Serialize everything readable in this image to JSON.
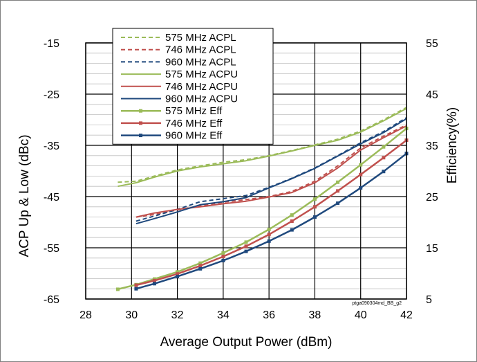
{
  "chart_data": {
    "type": "line",
    "xlabel": "Average Output Power (dBm)",
    "ylabel": "ACP Up & Low (dBc)",
    "y2label": "Efficiency(%)",
    "watermark": "ptga090304md_BB_g2",
    "xlim": [
      28,
      42
    ],
    "ylim": [
      -65,
      -15
    ],
    "y2lim": [
      5,
      55
    ],
    "xticks": [
      "28",
      "30",
      "32",
      "34",
      "36",
      "38",
      "40",
      "42"
    ],
    "yticks": [
      "-65",
      "-55",
      "-45",
      "-35",
      "-25",
      "-15"
    ],
    "y2ticks": [
      "5",
      "15",
      "25",
      "35",
      "45",
      "55"
    ],
    "grid": true,
    "legend": "top-left",
    "series": [
      {
        "name": "575 MHz ACPL",
        "color": "#9bbb59",
        "style": "dashed",
        "axis": "left",
        "x": [
          29.4,
          30.2,
          31,
          32,
          33,
          34,
          35,
          36,
          37,
          38,
          39,
          40,
          41,
          42
        ],
        "y": [
          -42.2,
          -42,
          -41,
          -39.8,
          -39,
          -38.3,
          -37.8,
          -37,
          -36,
          -34.9,
          -33.8,
          -32.2,
          -30,
          -27.6
        ]
      },
      {
        "name": "746 MHz ACPL",
        "color": "#c0504d",
        "style": "dashed",
        "axis": "left",
        "x": [
          30.2,
          31,
          32,
          33,
          34,
          35,
          36,
          37,
          38,
          39,
          40,
          41,
          42
        ],
        "y": [
          -49,
          -48.5,
          -47.6,
          -46.8,
          -46.1,
          -45.6,
          -45,
          -44,
          -42,
          -39,
          -35.5,
          -33.2,
          -31
        ]
      },
      {
        "name": "960 MHz ACPL",
        "color": "#1f497d",
        "style": "dashed",
        "axis": "left",
        "x": [
          30.2,
          31,
          32,
          33,
          34,
          35,
          36,
          37,
          38,
          39,
          40,
          41,
          42
        ],
        "y": [
          -49.8,
          -48.8,
          -47.5,
          -46,
          -45.4,
          -44.8,
          -43.2,
          -41.4,
          -39.4,
          -37,
          -34.5,
          -32.3,
          -29.6
        ]
      },
      {
        "name": "575 MHz ACPU",
        "color": "#9bbb59",
        "style": "solid",
        "axis": "left",
        "x": [
          29.4,
          30.2,
          31,
          32,
          33,
          34,
          35,
          36,
          37,
          38,
          39,
          40,
          41,
          42
        ],
        "y": [
          -43,
          -42.3,
          -41.2,
          -40,
          -39.2,
          -38.6,
          -38,
          -37.1,
          -36.1,
          -35,
          -34,
          -32.4,
          -30.2,
          -27.8
        ]
      },
      {
        "name": "746 MHz ACPU",
        "color": "#c0504d",
        "style": "solid",
        "axis": "left",
        "x": [
          30.2,
          31,
          32,
          33,
          34,
          35,
          36,
          37,
          38,
          39,
          40,
          41,
          42
        ],
        "y": [
          -49,
          -48.2,
          -47.5,
          -47,
          -46.4,
          -45.9,
          -45.1,
          -44.2,
          -42.3,
          -39.4,
          -35.9,
          -33.5,
          -31.2
        ]
      },
      {
        "name": "960 MHz ACPU",
        "color": "#1f497d",
        "style": "solid",
        "axis": "left",
        "x": [
          30.2,
          31,
          32,
          33,
          34,
          35,
          36,
          37,
          38,
          39,
          40,
          41,
          42
        ],
        "y": [
          -50.3,
          -49.3,
          -48,
          -46.6,
          -46,
          -45.2,
          -43.3,
          -41.5,
          -39.5,
          -37.1,
          -34.7,
          -32.5,
          -29.8
        ]
      },
      {
        "name": "575 MHz Eff",
        "color": "#9bbb59",
        "style": "marker",
        "axis": "right",
        "x": [
          29.4,
          30.2,
          31,
          32,
          33,
          34,
          35,
          36,
          37,
          38,
          39,
          40,
          41,
          42
        ],
        "y": [
          6.9,
          7.8,
          8.9,
          10.3,
          12,
          14,
          16.1,
          18.6,
          21.4,
          24.5,
          27.8,
          31.2,
          34.7,
          38.3
        ]
      },
      {
        "name": "746 MHz Eff",
        "color": "#c0504d",
        "style": "marker",
        "axis": "right",
        "x": [
          30.2,
          31,
          32,
          33,
          34,
          35,
          36,
          37,
          38,
          39,
          40,
          41,
          42
        ],
        "y": [
          7.7,
          8.6,
          9.9,
          11.5,
          13.3,
          15.3,
          17.6,
          20.2,
          23,
          26.1,
          29.3,
          32.6,
          36
        ]
      },
      {
        "name": "960 MHz Eff",
        "color": "#1f497d",
        "style": "marker",
        "axis": "right",
        "x": [
          30.2,
          31,
          32,
          33,
          34,
          35,
          36,
          37,
          38,
          39,
          40,
          41,
          42
        ],
        "y": [
          7,
          8,
          9.4,
          10.9,
          12.5,
          14.3,
          16.3,
          18.5,
          21,
          23.7,
          26.7,
          29.9,
          33.4
        ]
      }
    ]
  }
}
